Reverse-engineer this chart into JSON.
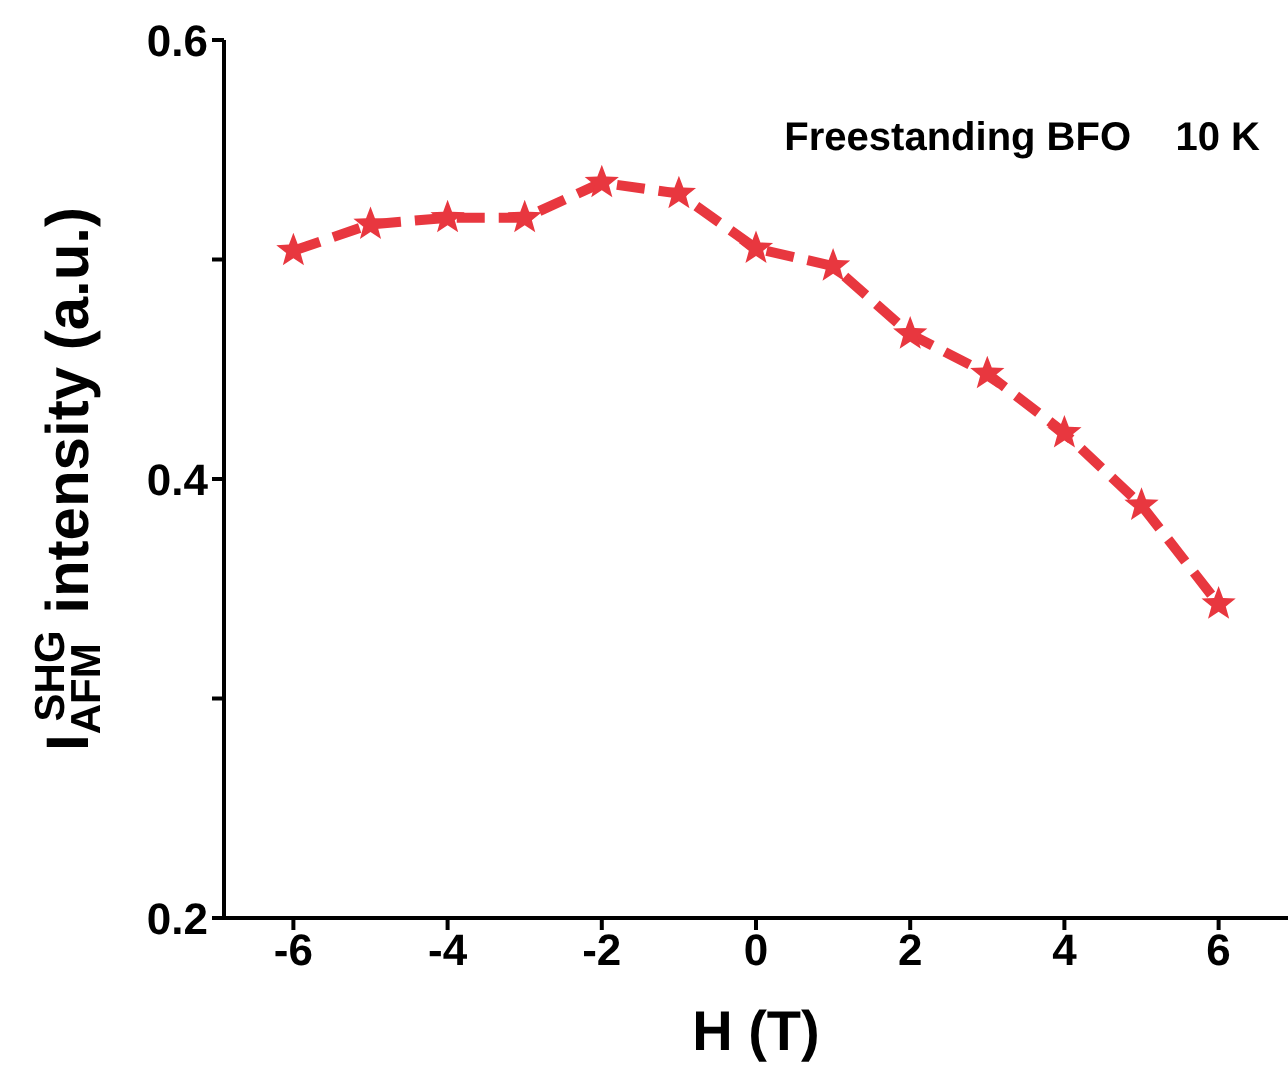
{
  "chart_data": {
    "type": "line",
    "xlabel": "H (T)",
    "ylabel": "I$_{AFM}$$^{SHG}$ intensity (a.u.)",
    "annotations": [
      "Freestanding BFO    10 K"
    ],
    "x": [
      -6,
      -5,
      -4,
      -3,
      -2,
      -1,
      0,
      1,
      2,
      3,
      4,
      5,
      6
    ],
    "series": [
      {
        "color": "#e8373f",
        "values": [
          0.504,
          0.516,
          0.519,
          0.519,
          0.535,
          0.53,
          0.505,
          0.497,
          0.466,
          0.448,
          0.421,
          0.388,
          0.343
        ]
      }
    ],
    "xlim": [
      -6.9,
      6.9
    ],
    "xticks": [
      -6,
      -4,
      -2,
      0,
      2,
      4,
      6
    ],
    "ylim": [
      0.2,
      0.6
    ],
    "yticks": [
      0.2,
      {
        "value": 0.3,
        "label": null
      },
      0.4,
      {
        "value": 0.5,
        "label": null
      },
      0.6
    ],
    "marker": "star",
    "line_style": "dashed",
    "grid": false,
    "legend": false
  }
}
